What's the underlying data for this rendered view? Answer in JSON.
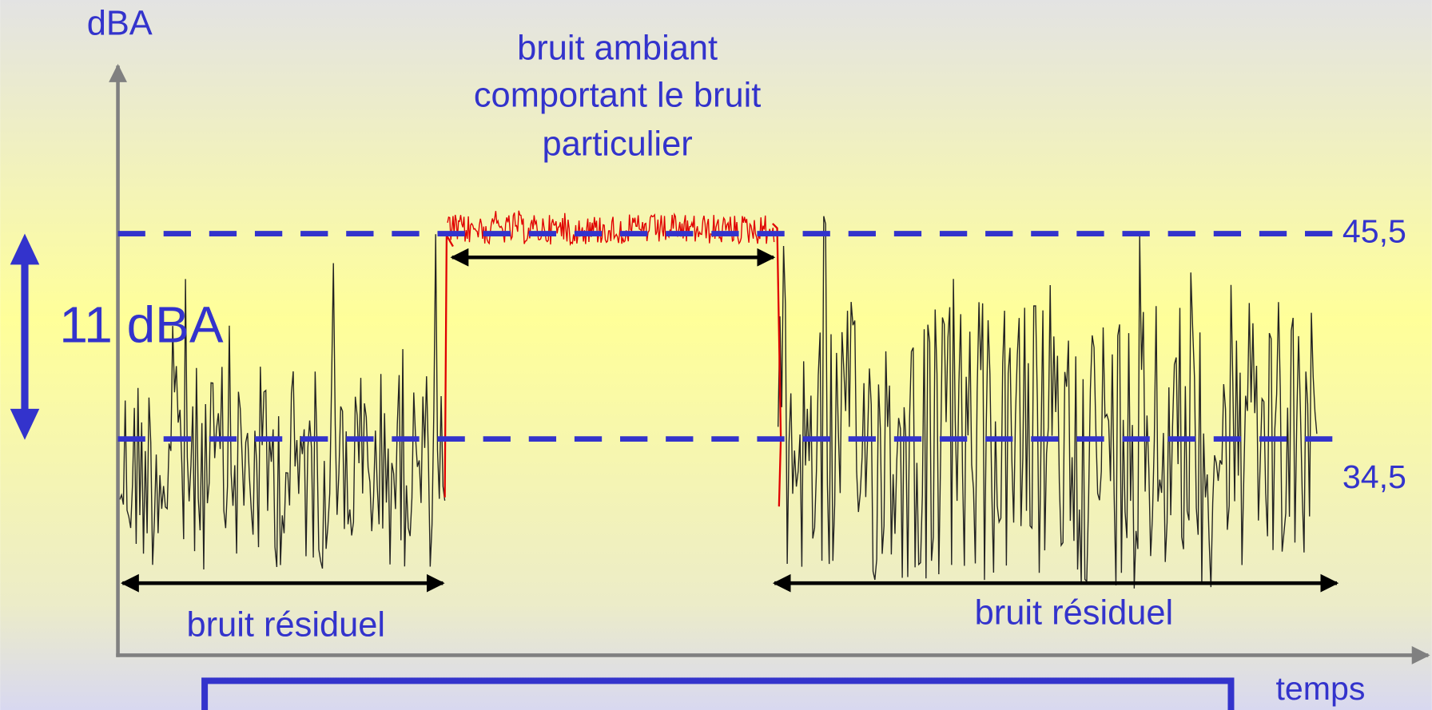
{
  "diagram": {
    "y_axis_label": "dBA",
    "x_axis_label": "temps",
    "title_lines": [
      "bruit ambiant",
      "comportant le bruit",
      "particulier"
    ],
    "upper_level": "45,5",
    "lower_level": "34,5",
    "difference": "11 dBA",
    "left_label": "bruit résiduel",
    "right_label": "bruit résiduel"
  }
}
